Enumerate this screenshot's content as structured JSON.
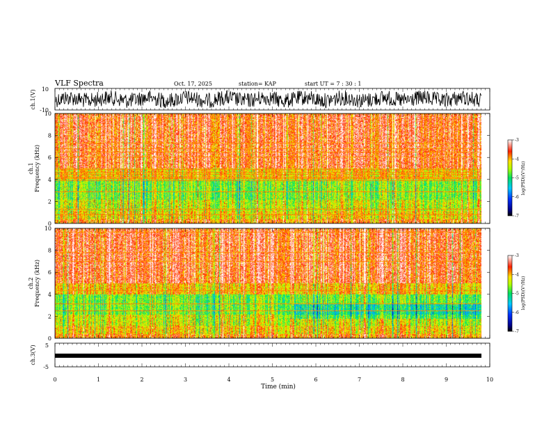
{
  "header": {
    "title": "VLF Spectra",
    "date": "Oct. 17, 2025",
    "station": "station= KAP",
    "start": "start  UT =   7 : 30 : 1"
  },
  "colors": {
    "trace": "#000000",
    "background": "#ffffff"
  },
  "chart_data": [
    {
      "type": "line",
      "name": "ch1-waveform",
      "ylabel": "ch.1(V)",
      "ylim": [
        -10,
        10
      ],
      "yticks": [
        "10",
        "-10"
      ],
      "xlim": [
        0,
        10
      ]
    },
    {
      "type": "heatmap",
      "name": "ch1-spectrogram",
      "ylabel_top": "ch.1",
      "ylabel": "Frequency (kHz)",
      "ylim": [
        0,
        10
      ],
      "yticks": [
        "0",
        "2",
        "4",
        "6",
        "8",
        "10"
      ],
      "xlim": [
        0,
        10
      ],
      "colorbar": {
        "label": "log(PSD)(V²/Hz)",
        "min": -7,
        "max": -3,
        "ticks": [
          "-3",
          "-4",
          "-5",
          "-6",
          "-7"
        ]
      }
    },
    {
      "type": "heatmap",
      "name": "ch2-spectrogram",
      "ylabel_top": "ch.2",
      "ylabel": "Frequency (kHz)",
      "ylim": [
        0,
        10
      ],
      "yticks": [
        "0",
        "2",
        "4",
        "6",
        "8",
        "10"
      ],
      "xlim": [
        0,
        10
      ],
      "colorbar": {
        "label": "log(PSD)(V²/Hz)",
        "min": -7,
        "max": -3,
        "ticks": [
          "-3",
          "-4",
          "-5",
          "-6",
          "-7"
        ]
      }
    },
    {
      "type": "line",
      "name": "ch3-waveform",
      "ylabel": "ch.3(V)",
      "ylim": [
        -5,
        5
      ],
      "yticks": [
        "5",
        "-5"
      ],
      "xlim": [
        0,
        10
      ],
      "xlabel": "Time (min)",
      "xticks": [
        "0",
        "1",
        "2",
        "3",
        "4",
        "5",
        "6",
        "7",
        "8",
        "9",
        "10"
      ]
    }
  ]
}
